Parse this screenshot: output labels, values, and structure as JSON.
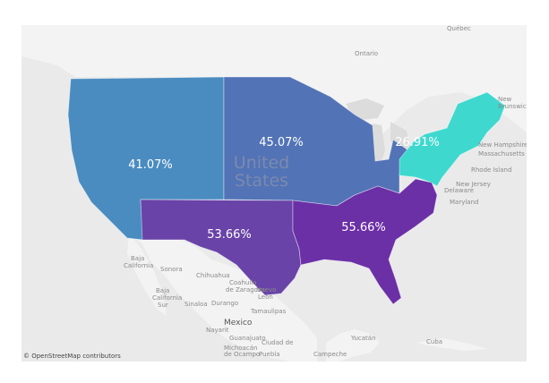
{
  "map": {
    "attribution": "© OpenStreetMap contributors",
    "country_label_lines": [
      "United",
      "States"
    ],
    "regions": [
      {
        "id": "west",
        "value": "41.07%",
        "color": "#4a8cc0"
      },
      {
        "id": "midwest",
        "value": "45.07%",
        "color": "#5273b6"
      },
      {
        "id": "northeast",
        "value": "26.91%",
        "color": "#3ed8cf"
      },
      {
        "id": "southwest",
        "value": "53.66%",
        "color": "#6943a8"
      },
      {
        "id": "southeast",
        "value": "55.66%",
        "color": "#6b2fa6"
      }
    ],
    "labels": {
      "quebec": "Québec",
      "ontario": "Ontario",
      "new_brunswick_1": "New",
      "new_brunswick_2": "Brunswick",
      "new_hampshire": "New Hampshire",
      "massachusetts": "Massachusetts",
      "rhode_island": "Rhode Island",
      "new_jersey": "New Jersey",
      "delaware": "Delaware",
      "maryland": "Maryland",
      "baja_california_1": "Baja",
      "baja_california_2": "California",
      "sonora": "Sonora",
      "chihuahua": "Chihuahua",
      "coahuila_1": "Coahuila",
      "coahuila_2": "de Zaragoza",
      "nuevo_leon_1": "Nuevo",
      "nuevo_leon_2": "León",
      "baja_sur_1": "Baja",
      "baja_sur_2": "California",
      "baja_sur_3": "Sur",
      "sinaloa": "Sinaloa",
      "durango": "Durango",
      "tamaulipas": "Tamaulipas",
      "mexico": "Mexico",
      "nayarit": "Nayarit",
      "guanajuato": "Guanajuato",
      "mexico_city": "Ciudad de",
      "michoacan_1": "Michoacán",
      "michoacan_2": "de Ocampo",
      "puebla": "Puebla",
      "yucatan": "Yucatán",
      "campeche": "Campeche",
      "cuba": "Cuba"
    }
  }
}
